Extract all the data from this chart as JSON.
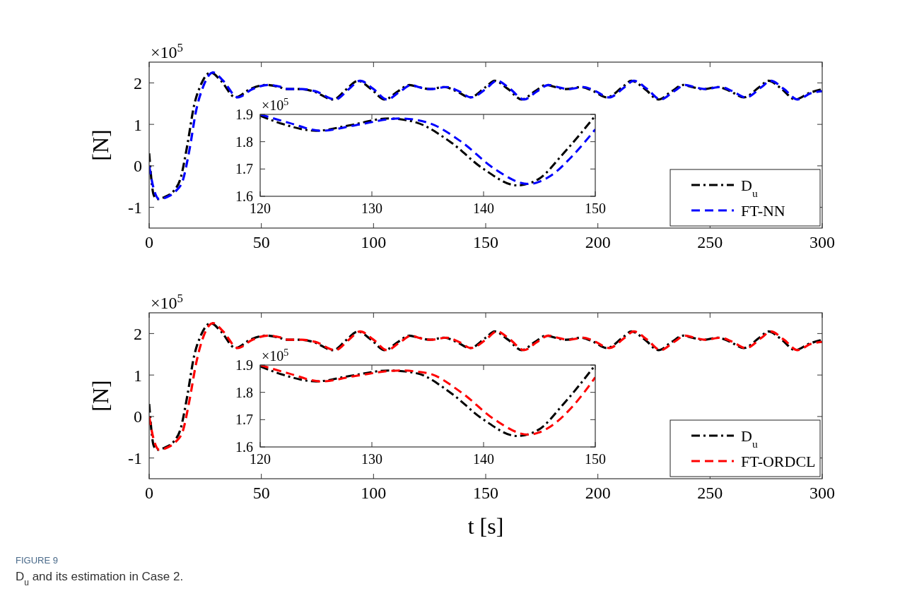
{
  "chart_data": [
    {
      "type": "line",
      "ylabel": "[N]",
      "annotations": [
        "×10$^{5}$"
      ],
      "xlim": [
        0,
        300
      ],
      "xticks": [
        0,
        50,
        100,
        150,
        200,
        250,
        300
      ],
      "ylim": [
        -1.5,
        2.5
      ],
      "yticks": [
        -1,
        0,
        1,
        2
      ],
      "legend": "bottom right",
      "series": [
        {
          "name": "D$_{u}$",
          "color": "#000000",
          "line_style": "dashdot",
          "x": [
            0,
            2,
            3.5,
            7,
            11,
            14,
            17,
            20,
            23,
            27.5,
            32,
            38.5,
            45,
            52,
            58,
            61,
            67,
            73,
            82,
            88,
            93,
            99,
            105,
            111,
            116,
            120,
            125,
            131.5,
            137,
            143,
            150,
            154,
            160,
            166,
            172,
            177,
            181,
            186,
            192.5,
            198,
            204,
            211,
            215,
            221,
            227,
            233,
            238,
            242,
            247,
            253.5,
            259,
            265,
            272,
            276,
            282,
            288,
            294,
            300
          ],
          "values": [
            0.3,
            -0.7,
            -0.8,
            -0.75,
            -0.6,
            -0.3,
            0.5,
            1.45,
            1.95,
            2.25,
            2.05,
            1.65,
            1.85,
            1.95,
            1.9,
            1.85,
            1.85,
            1.8,
            1.6,
            1.85,
            2.05,
            1.85,
            1.6,
            1.8,
            1.95,
            1.9,
            1.85,
            1.9,
            1.8,
            1.65,
            1.9,
            2.05,
            1.85,
            1.6,
            1.8,
            1.95,
            1.9,
            1.85,
            1.9,
            1.8,
            1.65,
            1.9,
            2.05,
            1.85,
            1.6,
            1.8,
            1.95,
            1.9,
            1.85,
            1.9,
            1.8,
            1.65,
            1.9,
            2.05,
            1.85,
            1.6,
            1.75,
            1.85
          ]
        },
        {
          "name": "FT-NN",
          "color": "#0000ff",
          "line_style": "dashed",
          "x": [
            0,
            2,
            4.5,
            8,
            12,
            15,
            18,
            21,
            24,
            28.5,
            33,
            39.5,
            46,
            53,
            59,
            62,
            68,
            74,
            83,
            89,
            94,
            100,
            106,
            112,
            117,
            120,
            125.5,
            132.5,
            138,
            143.5,
            150,
            155,
            161,
            167,
            173,
            178,
            182,
            187,
            193.5,
            199,
            205,
            212,
            216,
            222,
            228,
            234,
            239,
            243,
            248,
            254.5,
            260,
            266,
            273,
            277,
            283,
            289,
            295,
            300
          ],
          "values": [
            0,
            -0.55,
            -0.8,
            -0.75,
            -0.6,
            -0.35,
            0.4,
            1.35,
            1.9,
            2.25,
            2.05,
            1.65,
            1.85,
            1.95,
            1.9,
            1.85,
            1.85,
            1.8,
            1.6,
            1.85,
            2.05,
            1.85,
            1.6,
            1.8,
            1.95,
            1.9,
            1.85,
            1.9,
            1.8,
            1.65,
            1.85,
            2.05,
            1.85,
            1.6,
            1.8,
            1.95,
            1.9,
            1.85,
            1.9,
            1.8,
            1.65,
            1.9,
            2.05,
            1.85,
            1.6,
            1.8,
            1.95,
            1.9,
            1.85,
            1.9,
            1.8,
            1.65,
            1.9,
            2.05,
            1.85,
            1.6,
            1.75,
            1.8
          ]
        }
      ]
    },
    {
      "type": "line",
      "annotations": [
        "×10$^{5}$"
      ],
      "xlim": [
        120,
        150
      ],
      "xticks": [
        120,
        130,
        140,
        150
      ],
      "ylim": [
        1.6,
        1.9
      ],
      "yticks": [
        1.6,
        1.7,
        1.8,
        1.9
      ],
      "series": [
        {
          "color": "#000000",
          "line_style": "dashdot",
          "x": [
            120,
            122,
            125,
            128,
            131.5,
            134,
            137,
            140,
            143,
            145,
            147,
            150
          ],
          "values": [
            1.895,
            1.865,
            1.84,
            1.86,
            1.885,
            1.87,
            1.8,
            1.7,
            1.64,
            1.665,
            1.75,
            1.895
          ]
        },
        {
          "color": "#0000ff",
          "line_style": "dashed",
          "x": [
            120,
            122.5,
            125.5,
            128.5,
            132.5,
            135,
            138,
            141,
            144,
            146,
            148,
            150
          ],
          "values": [
            1.9,
            1.87,
            1.84,
            1.86,
            1.885,
            1.87,
            1.8,
            1.7,
            1.645,
            1.675,
            1.75,
            1.845
          ]
        }
      ]
    },
    {
      "type": "line",
      "xlabel": "t [s]",
      "ylabel": "[N]",
      "annotations": [
        "×10$^{5}$",
        "FIGURE 9",
        "D$_{u}$ and its estimation in Case 2."
      ],
      "xlim": [
        0,
        300
      ],
      "xticks": [
        0,
        50,
        100,
        150,
        200,
        250,
        300
      ],
      "ylim": [
        -1.5,
        2.5
      ],
      "yticks": [
        -1,
        0,
        1,
        2
      ],
      "legend": "bottom right",
      "series": [
        {
          "name": "D$_{u}$",
          "color": "#000000",
          "line_style": "dashdot",
          "x": [
            0,
            2,
            3.5,
            7,
            11,
            14,
            17,
            20,
            23,
            27.5,
            32,
            38.5,
            45,
            52,
            58,
            61,
            67,
            73,
            82,
            88,
            93,
            99,
            105,
            111,
            116,
            120,
            125,
            131.5,
            137,
            143,
            150,
            154,
            160,
            166,
            172,
            177,
            181,
            186,
            192.5,
            198,
            204,
            211,
            215,
            221,
            227,
            233,
            238,
            242,
            247,
            253.5,
            259,
            265,
            272,
            276,
            282,
            288,
            294,
            300
          ],
          "values": [
            0.3,
            -0.7,
            -0.8,
            -0.75,
            -0.6,
            -0.3,
            0.5,
            1.45,
            1.95,
            2.25,
            2.05,
            1.65,
            1.85,
            1.95,
            1.9,
            1.85,
            1.85,
            1.8,
            1.6,
            1.85,
            2.05,
            1.85,
            1.6,
            1.8,
            1.95,
            1.9,
            1.85,
            1.9,
            1.8,
            1.65,
            1.9,
            2.05,
            1.85,
            1.6,
            1.8,
            1.95,
            1.9,
            1.85,
            1.9,
            1.8,
            1.65,
            1.9,
            2.05,
            1.85,
            1.6,
            1.8,
            1.95,
            1.9,
            1.85,
            1.9,
            1.8,
            1.65,
            1.9,
            2.05,
            1.85,
            1.6,
            1.75,
            1.85
          ]
        },
        {
          "name": "FT-ORDCL",
          "color": "#ff0000",
          "line_style": "dashed",
          "x": [
            0,
            2,
            4.5,
            8,
            12,
            15,
            18,
            21,
            24,
            28.5,
            33,
            39.5,
            46,
            53,
            59,
            62,
            68,
            74,
            83,
            89,
            94,
            100,
            106,
            112,
            117,
            120,
            125.5,
            132.5,
            138,
            143.5,
            150,
            155,
            161,
            167,
            173,
            178,
            182,
            187,
            193.5,
            199,
            205,
            212,
            216,
            222,
            228,
            234,
            239,
            243,
            248,
            254.5,
            260,
            266,
            273,
            277,
            283,
            289,
            295,
            300
          ],
          "values": [
            0,
            -0.55,
            -0.8,
            -0.75,
            -0.6,
            -0.35,
            0.4,
            1.3,
            1.9,
            2.25,
            2.05,
            1.65,
            1.85,
            1.95,
            1.9,
            1.85,
            1.85,
            1.8,
            1.6,
            1.85,
            2.05,
            1.85,
            1.6,
            1.8,
            1.95,
            1.9,
            1.85,
            1.9,
            1.8,
            1.65,
            1.85,
            2.05,
            1.85,
            1.6,
            1.8,
            1.95,
            1.9,
            1.85,
            1.9,
            1.8,
            1.65,
            1.9,
            2.05,
            1.85,
            1.6,
            1.8,
            1.95,
            1.9,
            1.85,
            1.9,
            1.8,
            1.65,
            1.9,
            2.05,
            1.85,
            1.6,
            1.75,
            1.8
          ]
        }
      ]
    },
    {
      "type": "line",
      "annotations": [
        "×10$^{5}$"
      ],
      "xlim": [
        120,
        150
      ],
      "xticks": [
        120,
        130,
        140,
        150
      ],
      "ylim": [
        1.6,
        1.9
      ],
      "yticks": [
        1.6,
        1.7,
        1.8,
        1.9
      ],
      "series": [
        {
          "color": "#000000",
          "line_style": "dashdot",
          "x": [
            120,
            122,
            125,
            128,
            131.5,
            134,
            137,
            140,
            143,
            145,
            147,
            150
          ],
          "values": [
            1.895,
            1.865,
            1.84,
            1.86,
            1.88,
            1.87,
            1.8,
            1.7,
            1.64,
            1.665,
            1.75,
            1.9
          ]
        },
        {
          "color": "#ff0000",
          "line_style": "dashed",
          "x": [
            120,
            122.5,
            125.5,
            128.5,
            132.5,
            135,
            138,
            141,
            144,
            146,
            148,
            150
          ],
          "values": [
            1.9,
            1.87,
            1.84,
            1.86,
            1.88,
            1.87,
            1.8,
            1.7,
            1.645,
            1.675,
            1.75,
            1.855
          ]
        }
      ]
    }
  ]
}
